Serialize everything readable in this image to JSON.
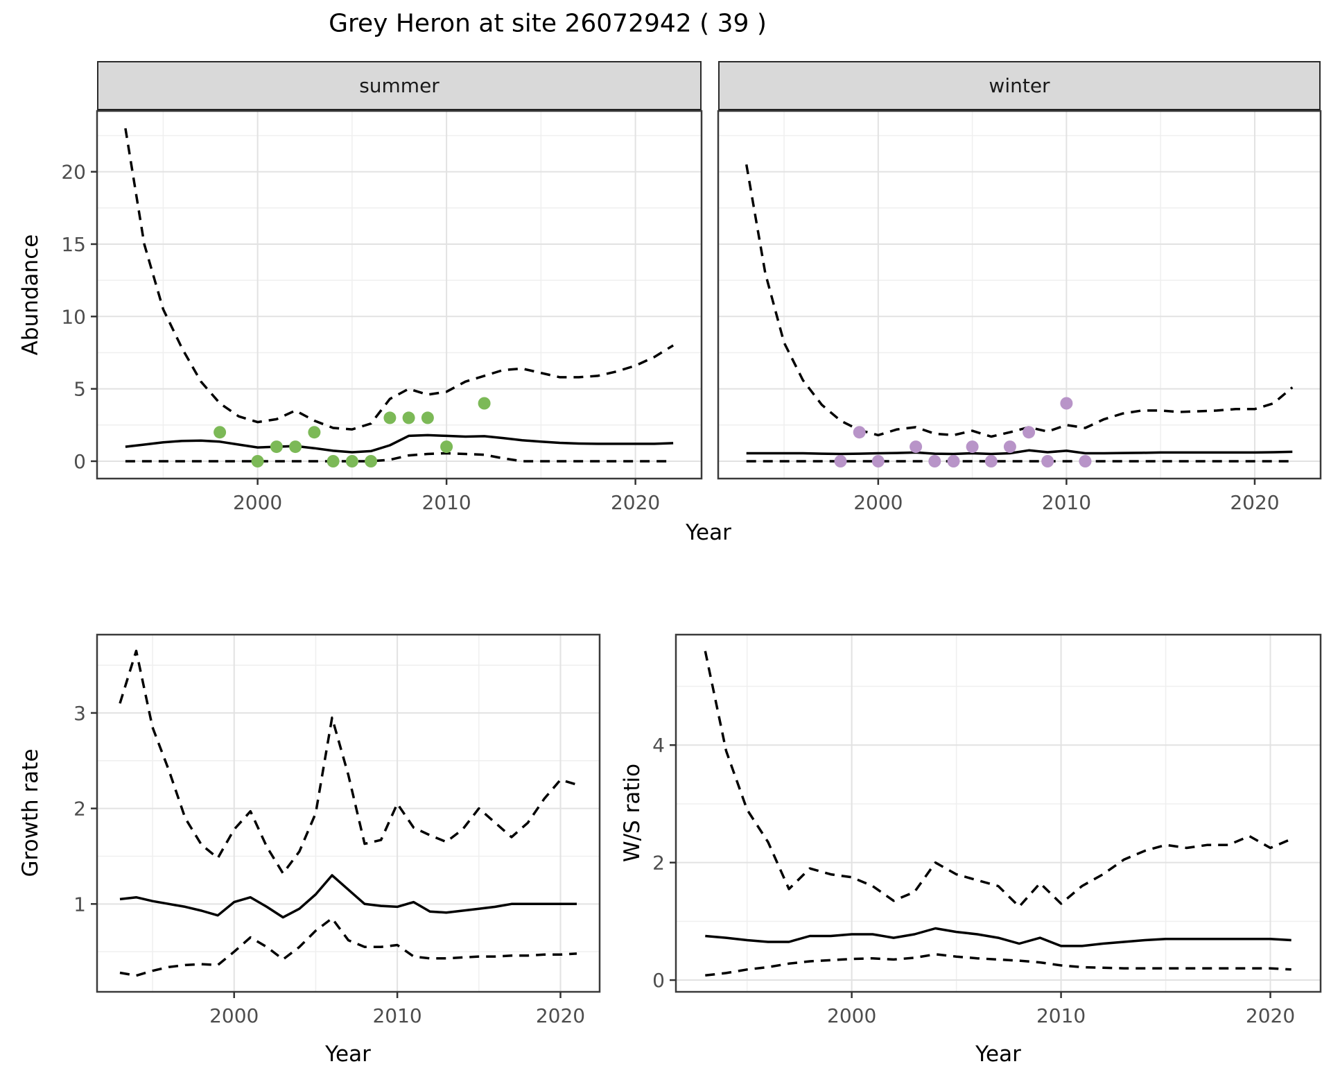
{
  "title": "Grey Heron at site 26072942 ( 39 )",
  "strips": {
    "summer": "summer",
    "winter": "winter"
  },
  "axis_titles": {
    "x": "Year",
    "abundance": "Abundance",
    "growth": "Growth rate",
    "ws": "W/S ratio"
  },
  "colors": {
    "summer_point": "#7cb957",
    "winter_point": "#b894c8",
    "line": "#000000",
    "strip_bg": "#d9d9d9",
    "panel_border": "#3a3a3a",
    "grid_major": "#e2e2e2",
    "grid_minor": "#efefef",
    "axis_text": "#4d4d4d"
  },
  "chart_data": [
    {
      "id": "abundance_summer",
      "type": "line+scatter",
      "facet": "summer",
      "title": "summer",
      "xlabel": "Year",
      "ylabel": "Abundance",
      "xlim": [
        1991.5,
        2023.5
      ],
      "ylim": [
        -1.2,
        24.2
      ],
      "xticks": [
        2000,
        2010,
        2020
      ],
      "xticks_minor": [
        1995,
        2005,
        2015
      ],
      "yticks": [
        0,
        5,
        10,
        15,
        20
      ],
      "yticks_minor": [
        2.5,
        7.5,
        12.5,
        17.5,
        22.5
      ],
      "years": [
        1993,
        1994,
        1995,
        1996,
        1997,
        1998,
        1999,
        2000,
        2001,
        2002,
        2003,
        2004,
        2005,
        2006,
        2007,
        2008,
        2009,
        2010,
        2011,
        2012,
        2013,
        2014,
        2015,
        2016,
        2017,
        2018,
        2019,
        2020,
        2021,
        2022
      ],
      "series": [
        {
          "name": "lower_CI",
          "style": "dashed",
          "values": [
            0,
            0,
            0,
            0,
            0,
            0,
            0,
            0,
            0,
            0,
            0,
            0,
            0,
            0,
            0.1,
            0.4,
            0.5,
            0.55,
            0.5,
            0.45,
            0.2,
            0,
            0,
            0,
            0,
            0,
            0,
            0,
            0,
            0
          ]
        },
        {
          "name": "upper_CI",
          "style": "dashed",
          "values": [
            23,
            15,
            10.5,
            7.8,
            5.5,
            4.0,
            3.1,
            2.7,
            2.9,
            3.5,
            2.8,
            2.3,
            2.2,
            2.6,
            4.3,
            5.0,
            4.6,
            4.8,
            5.5,
            5.9,
            6.3,
            6.4,
            6.1,
            5.8,
            5.8,
            5.9,
            6.2,
            6.6,
            7.2,
            8.0
          ]
        },
        {
          "name": "median",
          "style": "solid",
          "values": [
            1.0,
            1.15,
            1.3,
            1.4,
            1.42,
            1.35,
            1.15,
            0.95,
            1.0,
            1.05,
            0.9,
            0.72,
            0.62,
            0.7,
            1.1,
            1.75,
            1.8,
            1.75,
            1.7,
            1.73,
            1.6,
            1.45,
            1.35,
            1.27,
            1.22,
            1.2,
            1.2,
            1.2,
            1.2,
            1.25
          ]
        }
      ],
      "points": {
        "color_key": "summer_point",
        "xy": [
          [
            1998,
            2
          ],
          [
            2000,
            0
          ],
          [
            2001,
            1
          ],
          [
            2002,
            1
          ],
          [
            2003,
            2
          ],
          [
            2004,
            0
          ],
          [
            2005,
            0
          ],
          [
            2006,
            0
          ],
          [
            2007,
            3
          ],
          [
            2008,
            3
          ],
          [
            2009,
            3
          ],
          [
            2010,
            1
          ],
          [
            2012,
            4
          ]
        ]
      }
    },
    {
      "id": "abundance_winter",
      "type": "line+scatter",
      "facet": "winter",
      "title": "winter",
      "xlabel": "Year",
      "ylabel": "Abundance",
      "xlim": [
        1991.5,
        2023.5
      ],
      "ylim": [
        -1.2,
        24.2
      ],
      "xticks": [
        2000,
        2010,
        2020
      ],
      "xticks_minor": [
        1995,
        2005,
        2015
      ],
      "yticks": [
        0,
        5,
        10,
        15,
        20
      ],
      "yticks_minor": [
        2.5,
        7.5,
        12.5,
        17.5,
        22.5
      ],
      "years": [
        1993,
        1994,
        1995,
        1996,
        1997,
        1998,
        1999,
        2000,
        2001,
        2002,
        2003,
        2004,
        2005,
        2006,
        2007,
        2008,
        2009,
        2010,
        2011,
        2012,
        2013,
        2014,
        2015,
        2016,
        2017,
        2018,
        2019,
        2020,
        2021,
        2022
      ],
      "series": [
        {
          "name": "lower_CI",
          "style": "dashed",
          "values": [
            0,
            0,
            0,
            0,
            0,
            0,
            0,
            0,
            0,
            0,
            0,
            0,
            0,
            0,
            0,
            0,
            0,
            0,
            0,
            0,
            0,
            0,
            0,
            0,
            0,
            0,
            0,
            0,
            0,
            0
          ]
        },
        {
          "name": "upper_CI",
          "style": "dashed",
          "values": [
            20.5,
            13,
            8.2,
            5.6,
            3.9,
            2.8,
            2.15,
            1.8,
            2.2,
            2.35,
            1.9,
            1.8,
            2.1,
            1.7,
            2.0,
            2.35,
            2.05,
            2.5,
            2.3,
            2.9,
            3.3,
            3.5,
            3.5,
            3.4,
            3.45,
            3.5,
            3.6,
            3.6,
            4.0,
            5.1
          ]
        },
        {
          "name": "median",
          "style": "solid",
          "values": [
            0.55,
            0.55,
            0.55,
            0.55,
            0.52,
            0.5,
            0.52,
            0.55,
            0.57,
            0.6,
            0.52,
            0.5,
            0.55,
            0.5,
            0.55,
            0.75,
            0.62,
            0.72,
            0.55,
            0.55,
            0.57,
            0.58,
            0.6,
            0.6,
            0.6,
            0.6,
            0.6,
            0.6,
            0.62,
            0.65
          ]
        }
      ],
      "points": {
        "color_key": "winter_point",
        "xy": [
          [
            1998,
            0
          ],
          [
            1999,
            2
          ],
          [
            2000,
            0
          ],
          [
            2002,
            1
          ],
          [
            2003,
            0
          ],
          [
            2004,
            0
          ],
          [
            2005,
            1
          ],
          [
            2006,
            0
          ],
          [
            2007,
            1
          ],
          [
            2008,
            2
          ],
          [
            2009,
            0
          ],
          [
            2010,
            4
          ],
          [
            2011,
            0
          ]
        ]
      }
    },
    {
      "id": "growth",
      "type": "line",
      "title": "Growth rate",
      "xlabel": "Year",
      "ylabel": "Growth rate",
      "xlim": [
        1991.6,
        2022.4
      ],
      "ylim": [
        0.08,
        3.82
      ],
      "xticks": [
        2000,
        2010,
        2020
      ],
      "xticks_minor": [
        1995,
        2005,
        2015
      ],
      "yticks": [
        1,
        2,
        3
      ],
      "yticks_minor": [
        0.5,
        1.5,
        2.5,
        3.5
      ],
      "years": [
        1993,
        1994,
        1995,
        1996,
        1997,
        1998,
        1999,
        2000,
        2001,
        2002,
        2003,
        2004,
        2005,
        2006,
        2007,
        2008,
        2009,
        2010,
        2011,
        2012,
        2013,
        2014,
        2015,
        2016,
        2017,
        2018,
        2019,
        2020,
        2021
      ],
      "series": [
        {
          "name": "lower_CI",
          "style": "dashed",
          "values": [
            0.28,
            0.25,
            0.3,
            0.34,
            0.36,
            0.37,
            0.36,
            0.5,
            0.65,
            0.55,
            0.42,
            0.55,
            0.72,
            0.85,
            0.62,
            0.55,
            0.55,
            0.57,
            0.45,
            0.43,
            0.43,
            0.44,
            0.45,
            0.45,
            0.46,
            0.46,
            0.47,
            0.47,
            0.48
          ]
        },
        {
          "name": "upper_CI",
          "style": "dashed",
          "values": [
            3.1,
            3.65,
            2.85,
            2.4,
            1.9,
            1.62,
            1.48,
            1.78,
            1.97,
            1.6,
            1.32,
            1.55,
            1.95,
            2.95,
            2.35,
            1.63,
            1.67,
            2.05,
            1.8,
            1.72,
            1.65,
            1.78,
            2.0,
            1.85,
            1.7,
            1.85,
            2.1,
            2.3,
            2.25
          ]
        },
        {
          "name": "median",
          "style": "solid",
          "values": [
            1.05,
            1.07,
            1.03,
            1.0,
            0.97,
            0.93,
            0.88,
            1.02,
            1.07,
            0.97,
            0.86,
            0.95,
            1.1,
            1.3,
            1.15,
            1.0,
            0.98,
            0.97,
            1.02,
            0.92,
            0.91,
            0.93,
            0.95,
            0.97,
            1.0,
            1.0,
            1.0,
            1.0,
            1.0
          ]
        }
      ]
    },
    {
      "id": "ws",
      "type": "line",
      "title": "W/S ratio",
      "xlabel": "Year",
      "ylabel": "W/S ratio",
      "xlim": [
        1991.6,
        2022.4
      ],
      "ylim": [
        -0.2,
        5.88
      ],
      "xticks": [
        2000,
        2010,
        2020
      ],
      "xticks_minor": [
        1995,
        2005,
        2015
      ],
      "yticks": [
        0,
        2,
        4
      ],
      "yticks_minor": [
        1,
        3,
        5
      ],
      "years": [
        1993,
        1994,
        1995,
        1996,
        1997,
        1998,
        1999,
        2000,
        2001,
        2002,
        2003,
        2004,
        2005,
        2006,
        2007,
        2008,
        2009,
        2010,
        2011,
        2012,
        2013,
        2014,
        2015,
        2016,
        2017,
        2018,
        2019,
        2020,
        2021
      ],
      "series": [
        {
          "name": "lower_CI",
          "style": "dashed",
          "values": [
            0.08,
            0.12,
            0.18,
            0.22,
            0.28,
            0.32,
            0.34,
            0.36,
            0.37,
            0.35,
            0.38,
            0.44,
            0.4,
            0.37,
            0.35,
            0.33,
            0.3,
            0.25,
            0.22,
            0.21,
            0.2,
            0.2,
            0.2,
            0.2,
            0.2,
            0.2,
            0.2,
            0.2,
            0.18
          ]
        },
        {
          "name": "upper_CI",
          "style": "dashed",
          "values": [
            5.6,
            3.9,
            2.9,
            2.35,
            1.55,
            1.9,
            1.8,
            1.75,
            1.6,
            1.35,
            1.5,
            2.0,
            1.8,
            1.7,
            1.6,
            1.25,
            1.65,
            1.3,
            1.6,
            1.8,
            2.05,
            2.2,
            2.3,
            2.25,
            2.3,
            2.3,
            2.45,
            2.25,
            2.4
          ]
        },
        {
          "name": "median",
          "style": "solid",
          "values": [
            0.75,
            0.72,
            0.68,
            0.65,
            0.65,
            0.75,
            0.75,
            0.78,
            0.78,
            0.72,
            0.78,
            0.88,
            0.82,
            0.78,
            0.72,
            0.62,
            0.72,
            0.58,
            0.58,
            0.62,
            0.65,
            0.68,
            0.7,
            0.7,
            0.7,
            0.7,
            0.7,
            0.7,
            0.68
          ]
        }
      ]
    }
  ]
}
